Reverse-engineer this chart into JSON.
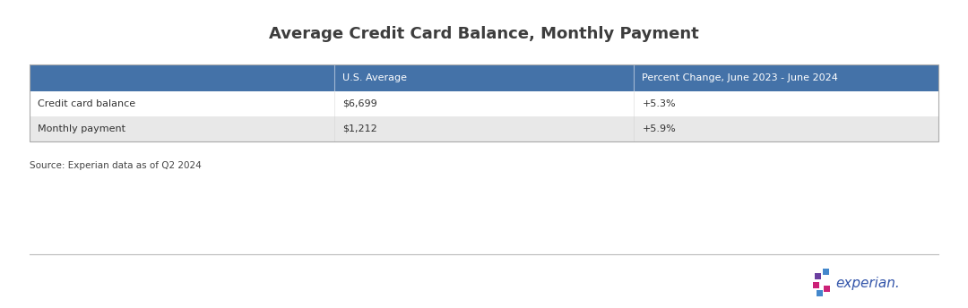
{
  "title": "Average Credit Card Balance, Monthly Payment",
  "title_fontsize": 13,
  "title_color": "#3d3d3d",
  "title_fontweight": "bold",
  "header_bg_color": "#4472a8",
  "header_text_color": "#ffffff",
  "header_fontsize": 8.0,
  "row1_bg_color": "#ffffff",
  "row2_bg_color": "#e8e8e8",
  "row_text_color": "#333333",
  "row_fontsize": 8.0,
  "source_text": "Source: Experian data as of Q2 2024",
  "source_fontsize": 7.5,
  "source_color": "#444444",
  "headers": [
    "",
    "U.S. Average",
    "Percent Change, June 2023 - June 2024"
  ],
  "rows": [
    [
      "Credit card balance",
      "$6,699",
      "+5.3%"
    ],
    [
      "Monthly payment",
      "$1,212",
      "+5.9%"
    ]
  ],
  "divider_color": "#bbbbbb",
  "fig_bg_color": "#ffffff",
  "experian_text_color": "#3355aa",
  "experian_dot_colors": [
    "#6633aa",
    "#4488cc",
    "#cc2277",
    "#4488cc",
    "#cc2277",
    "#4488cc"
  ],
  "experian_fontsize": 11
}
